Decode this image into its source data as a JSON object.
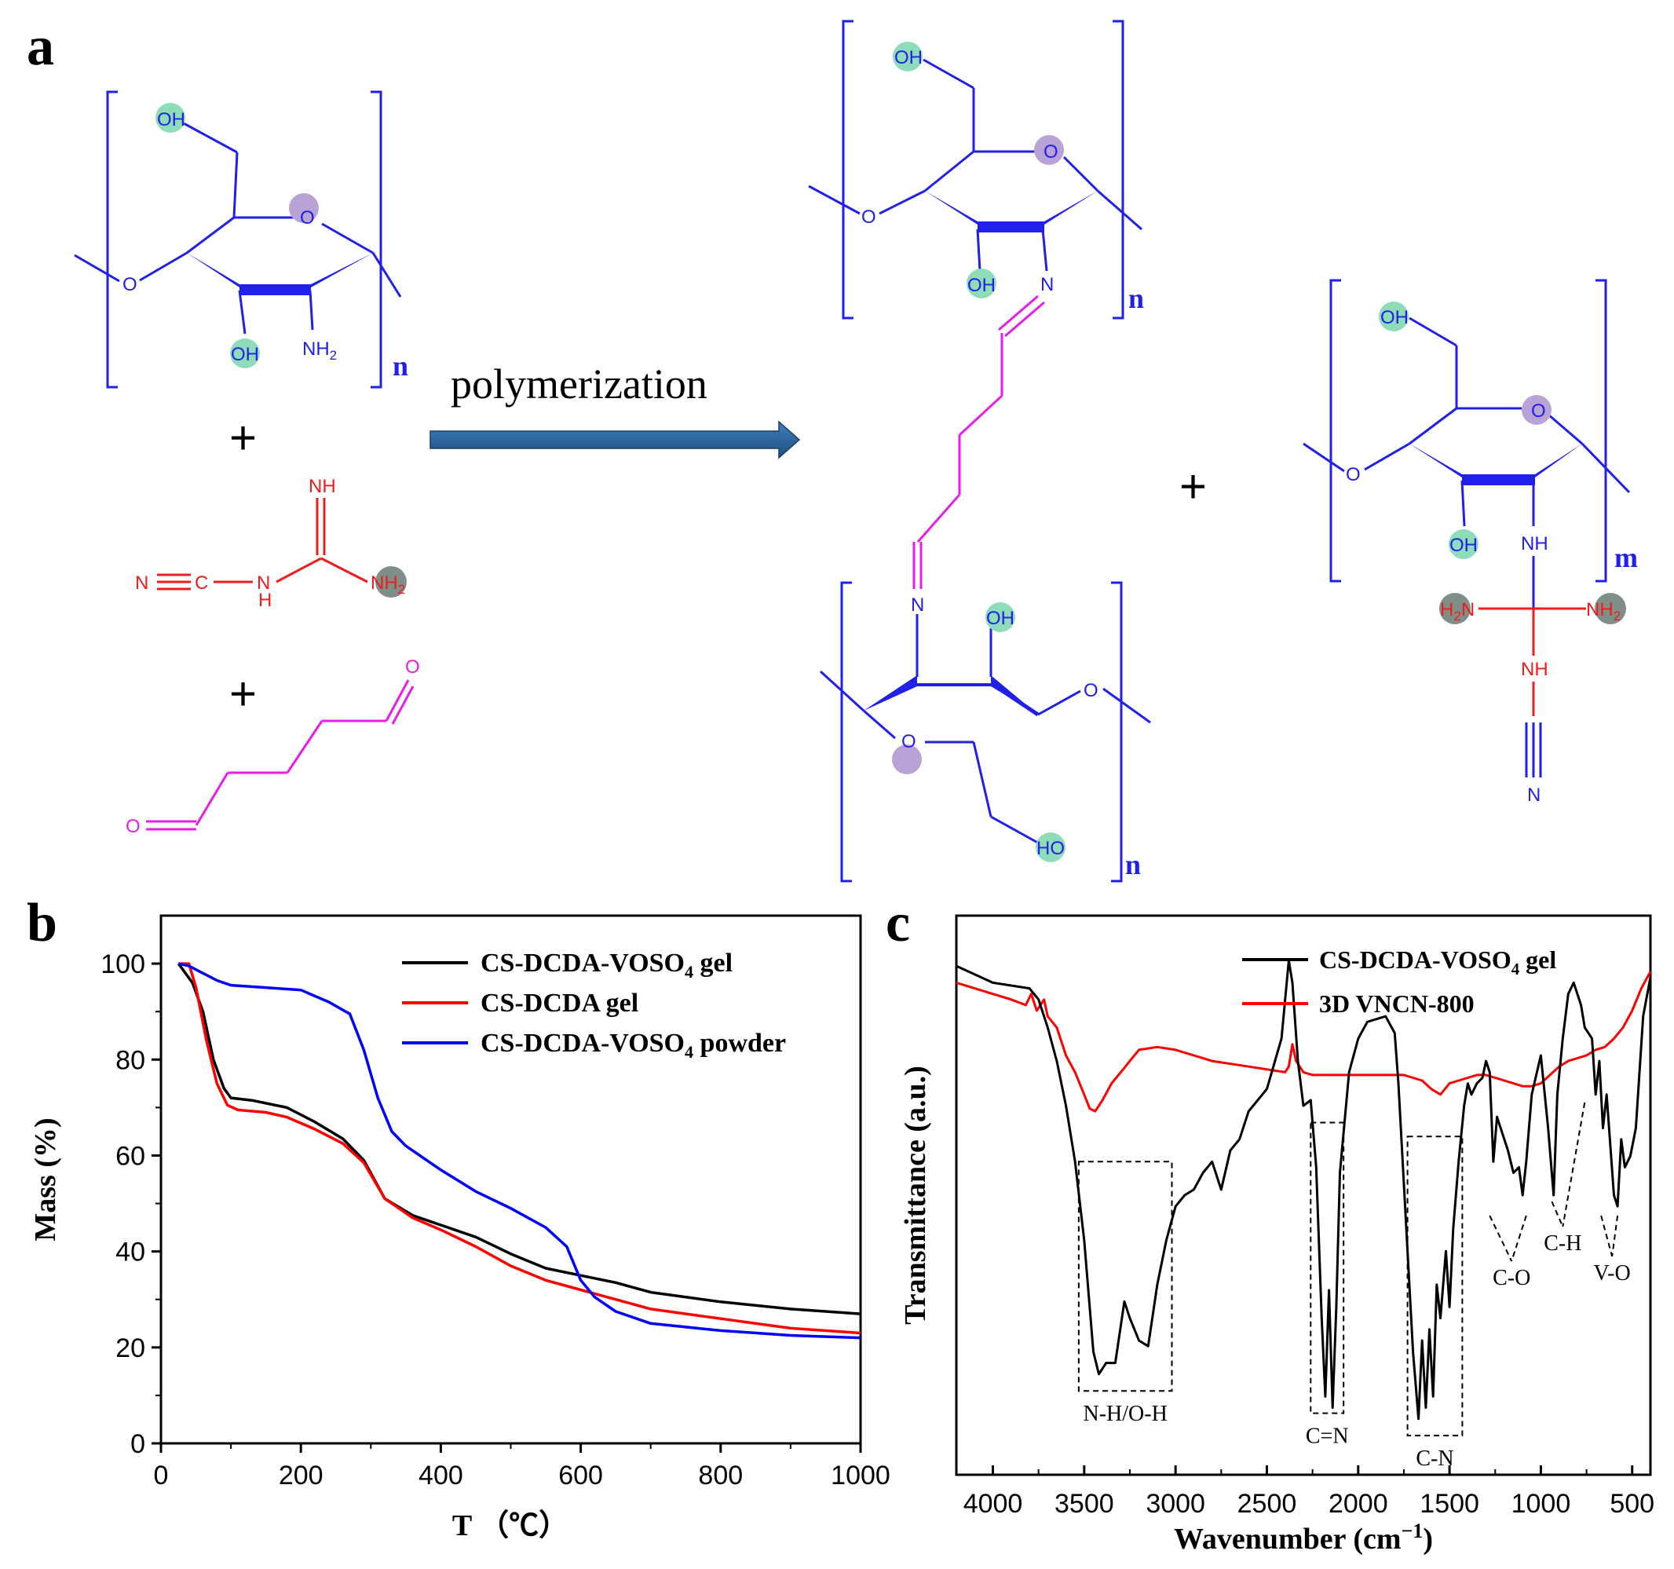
{
  "panels": {
    "a": "a",
    "b": "b",
    "c": "c"
  },
  "scheme": {
    "arrow_label": "polymerization",
    "plus": "+",
    "repeat_n": "n",
    "repeat_m": "m",
    "atoms": {
      "OH": "OH",
      "HO": "HO",
      "O": "O",
      "N": "N",
      "C": "C",
      "NH": "NH",
      "NH2": "NH",
      "H2N": "H",
      "H": "H",
      "sub2": "2"
    },
    "colors": {
      "backbone": "#2020e8",
      "dcda": "#ee1c1c",
      "glutaraldehyde": "#e61ee6",
      "oh_highlight": "#8edcb8",
      "o_highlight": "#b9a2d6",
      "nh2_highlight": "#7f8f87",
      "arrow": "#2e6aa6"
    }
  },
  "chart_data": [
    {
      "type": "line",
      "panel": "b",
      "title": "",
      "xlabel": "T （℃）",
      "ylabel": "Mass (%)",
      "xlim": [
        0,
        1000
      ],
      "ylim": [
        0,
        110
      ],
      "xticks": [
        0,
        200,
        400,
        600,
        800,
        1000
      ],
      "yticks": [
        0,
        20,
        40,
        60,
        80,
        100
      ],
      "legend_position": "top-right",
      "series": [
        {
          "name": "CS-DCDA-VOSO4 gel",
          "legend_main": "CS-DCDA-VOSO",
          "legend_sub": "4",
          "legend_tail": " gel",
          "color": "#000000",
          "x": [
            25,
            45,
            60,
            75,
            90,
            100,
            130,
            180,
            220,
            260,
            290,
            320,
            360,
            400,
            450,
            500,
            550,
            600,
            650,
            700,
            800,
            900,
            1000
          ],
          "y": [
            100,
            96,
            90,
            80,
            74,
            72,
            71.5,
            70,
            67,
            63.5,
            59,
            51,
            47.5,
            45.5,
            43,
            39.5,
            36.5,
            35,
            33.5,
            31.5,
            29.5,
            28,
            27
          ]
        },
        {
          "name": "CS-DCDA gel",
          "legend_main": "CS-DCDA gel",
          "legend_sub": "",
          "legend_tail": "",
          "color": "#ff0000",
          "x": [
            25,
            40,
            50,
            65,
            80,
            95,
            110,
            150,
            180,
            220,
            260,
            290,
            320,
            360,
            400,
            450,
            500,
            550,
            600,
            650,
            700,
            800,
            900,
            1000
          ],
          "y": [
            100,
            100,
            95,
            84,
            75,
            70.5,
            69.5,
            69,
            68,
            65.5,
            62.5,
            58.5,
            51,
            47,
            44.5,
            41,
            37,
            34,
            32,
            30,
            28,
            26,
            24,
            23
          ]
        },
        {
          "name": "CS-DCDA-VOSO4 powder",
          "legend_main": "CS-DCDA-VOSO",
          "legend_sub": "4",
          "legend_tail": " powder",
          "color": "#0000ff",
          "x": [
            25,
            40,
            60,
            80,
            100,
            150,
            200,
            240,
            270,
            290,
            310,
            330,
            350,
            400,
            450,
            500,
            550,
            580,
            600,
            620,
            650,
            700,
            800,
            900,
            1000
          ],
          "y": [
            100,
            99.5,
            98,
            96.5,
            95.5,
            95,
            94.5,
            92,
            89.5,
            82,
            72,
            65,
            62,
            57,
            52.5,
            49,
            45,
            41,
            34,
            30.5,
            27.5,
            25,
            23.5,
            22.5,
            22
          ]
        }
      ]
    },
    {
      "type": "line",
      "panel": "c",
      "title": "",
      "xlabel_main": "Wavenumber (cm",
      "xlabel_sup": "−1",
      "xlabel_tail": ")",
      "ylabel": "Transmittance (a.u.)",
      "xlim": [
        4200,
        400
      ],
      "ylim": [
        0,
        100
      ],
      "xticks": [
        4000,
        3500,
        3000,
        2500,
        2000,
        1500,
        1000,
        500
      ],
      "legend_position": "top-right",
      "series": [
        {
          "name": "CS-DCDA-VOSO4 gel",
          "legend_main": "CS-DCDA-VOSO",
          "legend_sub": "4",
          "legend_tail": " gel",
          "color": "#000000",
          "x": [
            4200,
            4000,
            3900,
            3800,
            3750,
            3700,
            3650,
            3600,
            3550,
            3500,
            3450,
            3420,
            3380,
            3330,
            3280,
            3250,
            3200,
            3150,
            3100,
            3050,
            3000,
            2950,
            2900,
            2850,
            2800,
            2750,
            2700,
            2650,
            2600,
            2500,
            2420,
            2380,
            2360,
            2330,
            2300,
            2260,
            2230,
            2200,
            2180,
            2160,
            2140,
            2120,
            2100,
            2050,
            2000,
            1950,
            1900,
            1850,
            1800,
            1780,
            1740,
            1700,
            1670,
            1650,
            1630,
            1610,
            1590,
            1570,
            1550,
            1520,
            1500,
            1480,
            1450,
            1420,
            1400,
            1380,
            1350,
            1320,
            1300,
            1280,
            1260,
            1240,
            1220,
            1180,
            1150,
            1120,
            1100,
            1080,
            1050,
            1000,
            960,
            930,
            910,
            880,
            850,
            820,
            800,
            780,
            760,
            720,
            700,
            680,
            660,
            640,
            600,
            580,
            560,
            540,
            510,
            480,
            440,
            400
          ],
          "y": [
            91,
            88,
            87.5,
            87,
            85,
            80,
            74,
            66,
            56,
            42,
            22,
            18,
            20,
            20,
            31,
            28,
            24,
            23,
            34,
            42,
            48,
            50,
            51,
            54,
            56,
            51,
            58,
            60,
            65,
            69,
            78,
            92,
            88,
            74,
            66,
            67,
            55,
            28,
            14,
            33,
            12,
            30,
            54,
            72,
            78,
            81,
            81.5,
            82,
            79,
            70,
            46,
            22,
            10,
            24,
            12,
            26,
            14,
            34,
            28,
            40,
            30,
            44,
            56,
            66,
            70,
            68,
            70,
            71,
            74,
            72,
            56,
            64,
            62,
            58,
            54,
            55,
            50,
            56,
            68,
            75,
            62,
            50,
            68,
            78,
            86,
            88,
            86,
            84,
            80,
            78,
            68,
            74,
            62,
            68,
            50,
            48,
            60,
            55,
            57,
            62,
            82,
            89
          ]
        },
        {
          "name": "3D VNCN-800",
          "legend_main": "3D VNCN-800",
          "legend_sub": "",
          "legend_tail": "",
          "color": "#ff0000",
          "x": [
            4200,
            4000,
            3900,
            3820,
            3790,
            3760,
            3720,
            3700,
            3650,
            3600,
            3550,
            3500,
            3470,
            3440,
            3400,
            3350,
            3300,
            3250,
            3200,
            3100,
            3000,
            2900,
            2800,
            2600,
            2400,
            2380,
            2360,
            2340,
            2300,
            2250,
            2200,
            2000,
            1900,
            1800,
            1750,
            1700,
            1650,
            1600,
            1550,
            1500,
            1450,
            1400,
            1350,
            1300,
            1250,
            1200,
            1150,
            1100,
            1050,
            1000,
            950,
            900,
            850,
            800,
            750,
            700,
            650,
            600,
            550,
            500,
            450,
            400
          ],
          "y": [
            88,
            86,
            85,
            84,
            86,
            83,
            85,
            82,
            80,
            75,
            72,
            68,
            65.5,
            65,
            67,
            70,
            72,
            74,
            76,
            76.5,
            76,
            75,
            74,
            73,
            72,
            73,
            77,
            74,
            72,
            71.5,
            71.5,
            71.5,
            71.5,
            71.5,
            71.5,
            71,
            70.5,
            69,
            68,
            70,
            70.5,
            71,
            71.5,
            71.5,
            71,
            70.5,
            70,
            69.5,
            69.5,
            70,
            71.5,
            73,
            74,
            74.5,
            75,
            76,
            76.5,
            78,
            80,
            83,
            87,
            90
          ]
        }
      ],
      "annotations": [
        {
          "label": "N-H/O-H",
          "x1": 3530,
          "x2": 3020,
          "ytop": 56,
          "ybot": 15
        },
        {
          "label": "C=N",
          "x1": 2260,
          "x2": 2080,
          "ytop": 63,
          "ybot": 11
        },
        {
          "label": "C-N",
          "x1": 1730,
          "x2": 1430,
          "ytop": 60.5,
          "ybot": 7
        }
      ],
      "peak_labels": [
        {
          "label": "C-O",
          "from": [
            1280,
            1080
          ],
          "to": 1160
        },
        {
          "label": "C-H",
          "from": [
            940,
            760
          ],
          "to": 880
        },
        {
          "label": "V-O",
          "from": [
            670,
            580
          ],
          "to": 610
        }
      ]
    }
  ]
}
